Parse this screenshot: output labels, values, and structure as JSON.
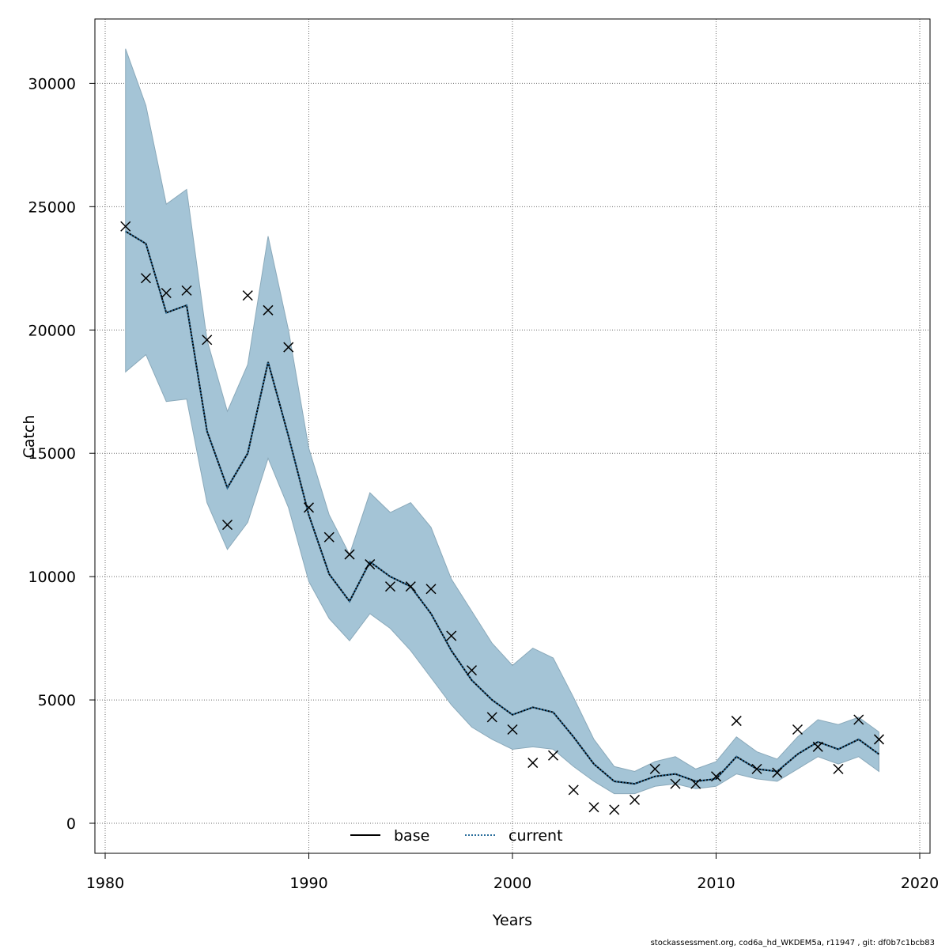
{
  "chart_data": {
    "type": "line",
    "xlabel": "Years",
    "ylabel": "Catch",
    "xlim": [
      1980,
      2020
    ],
    "ylim": [
      0,
      32000
    ],
    "x_ticks": [
      1980,
      1990,
      2000,
      2010,
      2020
    ],
    "y_ticks": [
      0,
      5000,
      10000,
      15000,
      20000,
      25000,
      30000
    ],
    "x_tick_labels": [
      "1980",
      "1990",
      "2000",
      "2010",
      "2020"
    ],
    "y_tick_labels": [
      "0",
      "5000",
      "10000",
      "15000",
      "20000",
      "25000",
      "30000"
    ],
    "grid": true,
    "legend_position": "bottom-center",
    "x": [
      1981,
      1982,
      1983,
      1984,
      1985,
      1986,
      1987,
      1988,
      1989,
      1990,
      1991,
      1992,
      1993,
      1994,
      1995,
      1996,
      1997,
      1998,
      1999,
      2000,
      2001,
      2002,
      2003,
      2004,
      2005,
      2006,
      2007,
      2008,
      2009,
      2010,
      2011,
      2012,
      2013,
      2014,
      2015,
      2016,
      2017,
      2018
    ],
    "series": [
      {
        "name": "base",
        "style": "solid",
        "color": "#000000",
        "values": [
          24000,
          23500,
          20700,
          21000,
          15900,
          13600,
          15000,
          18700,
          15700,
          12500,
          10100,
          9000,
          10600,
          10000,
          9600,
          8500,
          7000,
          5800,
          5000,
          4400,
          4700,
          4500,
          3500,
          2400,
          1700,
          1600,
          1900,
          2000,
          1700,
          1800,
          2700,
          2200,
          2100,
          2800,
          3300,
          3000,
          3400,
          2800
        ]
      },
      {
        "name": "current",
        "style": "dotted",
        "color": "#2a6e9c",
        "values": [
          24000,
          23500,
          20700,
          21000,
          15900,
          13600,
          15000,
          18700,
          15700,
          12500,
          10100,
          9000,
          10600,
          10000,
          9600,
          8500,
          7000,
          5800,
          5000,
          4400,
          4700,
          4500,
          3500,
          2400,
          1700,
          1600,
          1900,
          2000,
          1700,
          1800,
          2700,
          2200,
          2100,
          2800,
          3300,
          3000,
          3400,
          2800
        ]
      }
    ],
    "confidence_band": {
      "color": "#a4c4d6",
      "upper": [
        31400,
        29100,
        25100,
        25700,
        19600,
        16700,
        18600,
        23800,
        20000,
        15200,
        12500,
        10900,
        13400,
        12600,
        13000,
        12000,
        9900,
        8600,
        7300,
        6400,
        7100,
        6700,
        5100,
        3400,
        2300,
        2100,
        2500,
        2700,
        2200,
        2500,
        3500,
        2900,
        2600,
        3500,
        4200,
        4000,
        4300,
        3700
      ],
      "lower": [
        18300,
        19000,
        17100,
        17200,
        13000,
        11100,
        12200,
        14800,
        12800,
        9800,
        8300,
        7400,
        8500,
        7900,
        7000,
        5900,
        4800,
        3900,
        3400,
        3000,
        3100,
        3000,
        2300,
        1700,
        1200,
        1200,
        1500,
        1600,
        1400,
        1500,
        2000,
        1800,
        1700,
        2200,
        2700,
        2400,
        2700,
        2100
      ]
    },
    "observations": {
      "marker": "x",
      "values": [
        24200,
        22100,
        21500,
        21600,
        19600,
        12100,
        21400,
        20800,
        19300,
        12800,
        11600,
        10900,
        10500,
        9600,
        9600,
        9500,
        7600,
        6200,
        4300,
        3800,
        2450,
        2750,
        1350,
        650,
        550,
        950,
        2200,
        1600,
        1600,
        1900,
        4150,
        2200,
        2050,
        3800,
        3100,
        2200,
        4200,
        3400
      ]
    }
  },
  "legend": {
    "items": [
      {
        "label": "base"
      },
      {
        "label": "current"
      }
    ]
  },
  "footer": {
    "text": "stockassessment.org, cod6a_hd_WKDEM5a, r11947 , git: df0b7c1bcb83"
  },
  "colors": {
    "band": "#a4c4d6",
    "current_line": "#2a6e9c",
    "grid": "#6b6b6b"
  }
}
